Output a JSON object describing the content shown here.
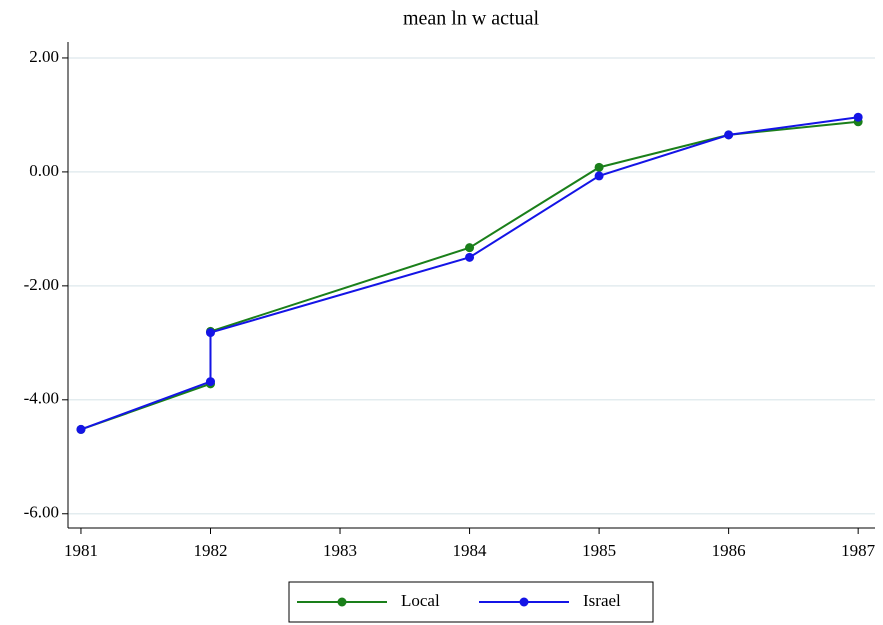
{
  "chart_data": {
    "type": "line",
    "title": "mean ln w actual",
    "x": [
      1981,
      1982,
      1982,
      1984,
      1985,
      1986,
      1987
    ],
    "series": [
      {
        "name": "Local",
        "color": "#1a7f1a",
        "values": [
          -4.52,
          -3.72,
          -2.8,
          -1.33,
          0.08,
          0.65,
          0.88
        ]
      },
      {
        "name": "Israel",
        "color": "#1414e6",
        "values": [
          -4.52,
          -3.68,
          -2.82,
          -1.5,
          -0.07,
          0.65,
          0.96
        ]
      }
    ],
    "xlim": [
      1980.9,
      1987.13
    ],
    "xticks": [
      1981,
      1982,
      1983,
      1984,
      1985,
      1986,
      1987
    ],
    "ylim": [
      -6.25,
      2.28
    ],
    "yticks": [
      {
        "value": -6,
        "label": "-6.00"
      },
      {
        "value": -4,
        "label": "-4.00"
      },
      {
        "value": -2,
        "label": "-2.00"
      },
      {
        "value": 0,
        "label": "0.00"
      },
      {
        "value": 2,
        "label": "2.00"
      }
    ],
    "grid": true,
    "legend": "bottom"
  }
}
